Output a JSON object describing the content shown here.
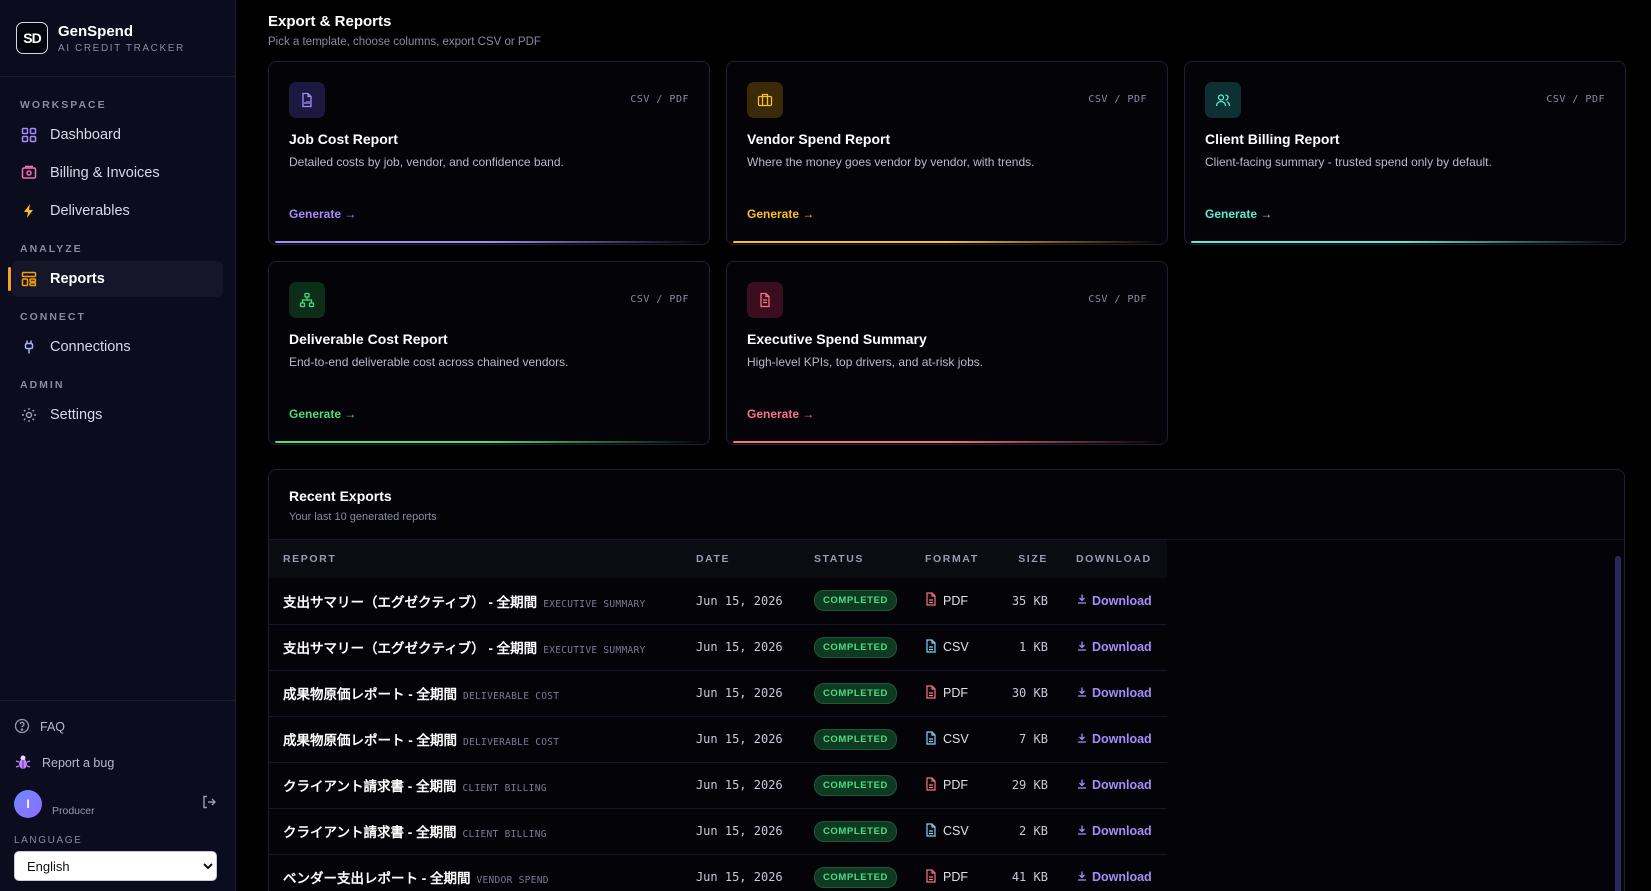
{
  "brand": {
    "logo_text": "SD",
    "name": "GenSpend",
    "subtitle": "AI CREDIT TRACKER"
  },
  "nav": {
    "sections": {
      "workspace": "WORKSPACE",
      "analyze": "ANALYZE",
      "connect": "CONNECT",
      "admin": "ADMIN"
    },
    "items": {
      "dashboard": "Dashboard",
      "billing": "Billing & Invoices",
      "deliverables": "Deliverables",
      "reports": "Reports",
      "connections": "Connections",
      "settings": "Settings"
    },
    "active": "reports",
    "accent_color": "#f5a524"
  },
  "footer": {
    "faq": "FAQ",
    "report_bug": "Report a bug",
    "user_initial": "I",
    "user_role": "Producer",
    "language_label": "LANGUAGE",
    "language_value": "English"
  },
  "page": {
    "title": "Export & Reports",
    "subtitle": "Pick a template, choose columns, export CSV or PDF"
  },
  "cards": [
    {
      "title": "Job Cost Report",
      "desc": "Detailed costs by job, vendor, and confidence band.",
      "format": "CSV / PDF",
      "action": "Generate →",
      "icon": "file-chart-icon",
      "color": "#a78bfa"
    },
    {
      "title": "Vendor Spend Report",
      "desc": "Where the money goes vendor by vendor, with trends.",
      "format": "CSV / PDF",
      "action": "Generate →",
      "icon": "briefcase-icon",
      "color": "#fbbf24"
    },
    {
      "title": "Client Billing Report",
      "desc": "Client-facing summary - trusted spend only by default.",
      "format": "CSV / PDF",
      "action": "Generate →",
      "icon": "users-icon",
      "color": "#5eead4"
    },
    {
      "title": "Deliverable Cost Report",
      "desc": "End-to-end deliverable cost across chained vendors.",
      "format": "CSV / PDF",
      "action": "Generate →",
      "icon": "network-icon",
      "color": "#4ade80"
    },
    {
      "title": "Executive Spend Summary",
      "desc": "High-level KPIs, top drivers, and at-risk jobs.",
      "format": "CSV / PDF",
      "action": "Generate →",
      "icon": "document-icon",
      "color": "#fb7185"
    }
  ],
  "recent": {
    "title": "Recent Exports",
    "subtitle": "Your last 10 generated reports",
    "columns": [
      "REPORT",
      "DATE",
      "STATUS",
      "FORMAT",
      "SIZE",
      "DOWNLOAD"
    ],
    "rows": [
      {
        "name": "支出サマリー（エグゼクティブ） - 全期間",
        "type": "EXECUTIVE SUMMARY",
        "date": "Jun 15, 2026",
        "status": "COMPLETED",
        "format": "PDF",
        "size": "35 KB",
        "download": "Download"
      },
      {
        "name": "支出サマリー（エグゼクティブ） - 全期間",
        "type": "EXECUTIVE SUMMARY",
        "date": "Jun 15, 2026",
        "status": "COMPLETED",
        "format": "CSV",
        "size": "1 KB",
        "download": "Download"
      },
      {
        "name": "成果物原価レポート - 全期間",
        "type": "DELIVERABLE COST",
        "date": "Jun 15, 2026",
        "status": "COMPLETED",
        "format": "PDF",
        "size": "30 KB",
        "download": "Download"
      },
      {
        "name": "成果物原価レポート - 全期間",
        "type": "DELIVERABLE COST",
        "date": "Jun 15, 2026",
        "status": "COMPLETED",
        "format": "CSV",
        "size": "7 KB",
        "download": "Download"
      },
      {
        "name": "クライアント請求書 - 全期間",
        "type": "CLIENT BILLING",
        "date": "Jun 15, 2026",
        "status": "COMPLETED",
        "format": "PDF",
        "size": "29 KB",
        "download": "Download"
      },
      {
        "name": "クライアント請求書 - 全期間",
        "type": "CLIENT BILLING",
        "date": "Jun 15, 2026",
        "status": "COMPLETED",
        "format": "CSV",
        "size": "2 KB",
        "download": "Download"
      },
      {
        "name": "ベンダー支出レポート - 全期間",
        "type": "VENDOR SPEND",
        "date": "Jun 15, 2026",
        "status": "COMPLETED",
        "format": "PDF",
        "size": "41 KB",
        "download": "Download"
      }
    ]
  }
}
